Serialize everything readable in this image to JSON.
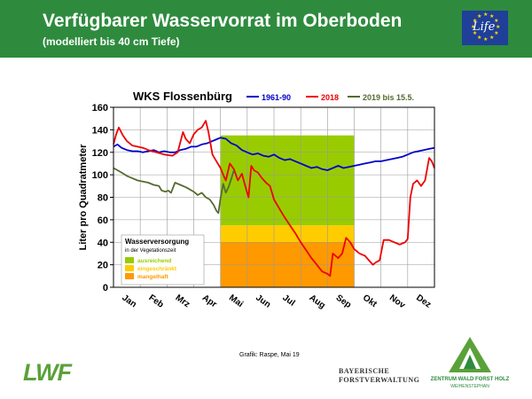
{
  "header": {
    "title": "Verfügbarer Wasservorrat im Oberboden",
    "subtitle": "(modelliert bis 40 cm Tiefe)",
    "badge_text": "Life"
  },
  "chart_data": {
    "type": "line",
    "title": "WKS Flossenbürg",
    "ylabel": "Liter pro Quadratmeter",
    "xlabel": "",
    "ylim": [
      0,
      160
    ],
    "yticks": [
      0,
      20,
      40,
      60,
      80,
      100,
      120,
      140,
      160
    ],
    "month_labels": [
      "Jan",
      "Feb",
      "Mrz",
      "Apr",
      "Mai",
      "Jun",
      "Jul",
      "Aug",
      "Sep",
      "Okt",
      "Nov",
      "Dez"
    ],
    "grid": true,
    "legend_position": "top",
    "vegetation_period": {
      "start_month": 4,
      "end_month": 9
    },
    "zones": [
      {
        "label": "ausreichend",
        "from": 55,
        "to": 135,
        "color": "#99cc00"
      },
      {
        "label": "eingeschränkt",
        "from": 40,
        "to": 55,
        "color": "#ffcc00"
      },
      {
        "label": "mangelhaft",
        "from": 0,
        "to": 40,
        "color": "#ff9900"
      }
    ],
    "zone_legend": {
      "title": "Wasserversorgung",
      "subtitle": "in der Vegetationszeit"
    },
    "series": [
      {
        "name": "1961-90",
        "color": "#0000cc",
        "x": [
          0.0,
          0.15,
          0.3,
          0.5,
          0.7,
          0.9,
          1.1,
          1.3,
          1.5,
          1.7,
          1.9,
          2.1,
          2.3,
          2.5,
          2.7,
          2.9,
          3.1,
          3.3,
          3.5,
          3.7,
          3.9,
          4.0,
          4.2,
          4.4,
          4.6,
          4.8,
          5.0,
          5.2,
          5.4,
          5.6,
          5.8,
          6.0,
          6.2,
          6.4,
          6.6,
          6.8,
          7.0,
          7.2,
          7.4,
          7.6,
          7.8,
          8.0,
          8.2,
          8.4,
          8.6,
          8.8,
          9.0,
          9.2,
          9.4,
          9.6,
          9.8,
          10.0,
          10.2,
          10.4,
          10.6,
          10.8,
          11.0,
          11.2,
          11.4,
          11.6,
          11.8,
          12.0
        ],
        "values": [
          125,
          127,
          124,
          122,
          121,
          121,
          120,
          121,
          122,
          120,
          121,
          120,
          120,
          122,
          123,
          125,
          125,
          127,
          128,
          130,
          132,
          133,
          132,
          128,
          126,
          122,
          120,
          118,
          119,
          117,
          116,
          118,
          115,
          113,
          114,
          112,
          110,
          108,
          106,
          107,
          105,
          104,
          106,
          108,
          106,
          107,
          108,
          109,
          110,
          111,
          112,
          112,
          113,
          114,
          115,
          116,
          118,
          120,
          121,
          122,
          123,
          124
        ]
      },
      {
        "name": "2018",
        "color": "#ee0000",
        "x": [
          0.0,
          0.1,
          0.2,
          0.35,
          0.5,
          0.7,
          0.9,
          1.1,
          1.3,
          1.6,
          1.9,
          2.2,
          2.4,
          2.6,
          2.7,
          2.85,
          3.0,
          3.15,
          3.3,
          3.45,
          3.55,
          3.7,
          3.85,
          4.0,
          4.1,
          4.2,
          4.35,
          4.5,
          4.65,
          4.8,
          4.95,
          5.05,
          5.15,
          5.25,
          5.4,
          5.55,
          5.7,
          5.85,
          6.0,
          6.2,
          6.4,
          6.6,
          6.8,
          7.0,
          7.2,
          7.4,
          7.6,
          7.8,
          8.0,
          8.1,
          8.2,
          8.3,
          8.4,
          8.55,
          8.7,
          8.85,
          9.0,
          9.2,
          9.4,
          9.55,
          9.7,
          9.8,
          9.95,
          10.1,
          10.3,
          10.5,
          10.7,
          10.9,
          11.0,
          11.1,
          11.2,
          11.35,
          11.5,
          11.65,
          11.8,
          11.9,
          12.0
        ],
        "values": [
          127,
          136,
          142,
          135,
          130,
          126,
          125,
          124,
          122,
          120,
          118,
          117,
          120,
          138,
          132,
          128,
          136,
          140,
          142,
          148,
          138,
          118,
          112,
          106,
          100,
          95,
          110,
          105,
          95,
          101,
          88,
          80,
          108,
          104,
          102,
          97,
          93,
          90,
          78,
          70,
          62,
          55,
          48,
          40,
          33,
          26,
          20,
          14,
          12,
          10,
          30,
          28,
          26,
          30,
          44,
          40,
          34,
          30,
          28,
          24,
          20,
          22,
          24,
          42,
          42,
          40,
          38,
          40,
          43,
          80,
          92,
          95,
          90,
          95,
          115,
          112,
          106
        ]
      },
      {
        "name": "2019 bis 15.5.",
        "color": "#556b2f",
        "x": [
          0.0,
          0.15,
          0.3,
          0.5,
          0.7,
          0.9,
          1.1,
          1.3,
          1.5,
          1.7,
          1.8,
          1.95,
          2.05,
          2.15,
          2.3,
          2.5,
          2.7,
          2.85,
          3.0,
          3.15,
          3.3,
          3.45,
          3.6,
          3.75,
          3.85,
          3.92,
          4.0,
          4.1,
          4.2,
          4.3,
          4.4,
          4.5
        ],
        "values": [
          106,
          104,
          102,
          99,
          97,
          95,
          94,
          93,
          91,
          90,
          86,
          85,
          86,
          84,
          93,
          91,
          89,
          87,
          85,
          82,
          84,
          80,
          78,
          73,
          68,
          66,
          79,
          92,
          84,
          89,
          96,
          104
        ]
      }
    ]
  },
  "footer": {
    "credit": "Grafik: Raspe, Mai 19",
    "logo_lwf": "LWF",
    "logo_bfv_line1": "BAYERISCHE",
    "logo_bfv_line2": "FORSTVERWALTUNG",
    "logo_zwfh_name": "ZENTRUM WALD FORST HOLZ",
    "logo_zwfh_sub": "WEIHENSTEPHAN"
  },
  "colors": {
    "header_bg": "#2e8b3e",
    "brand_green": "#5aa13a"
  }
}
